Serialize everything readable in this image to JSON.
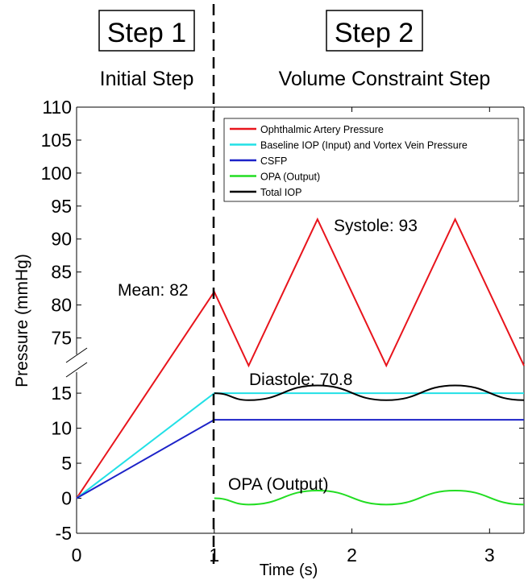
{
  "header": {
    "step1_label": "Step 1",
    "step1_sub": "Initial Step",
    "step2_label": "Step 2",
    "step2_sub": "Volume Constraint Step"
  },
  "chart_data": {
    "type": "line",
    "xlabel": "Time (s)",
    "ylabel": "Pressure (mmHg)",
    "xlim": [
      0,
      3.25
    ],
    "xticks": [
      0,
      1,
      2,
      3
    ],
    "yticks_upper": [
      75,
      80,
      85,
      90,
      95,
      100,
      105,
      110
    ],
    "yticks_lower": [
      -5,
      0,
      5,
      10,
      15
    ],
    "axis_break": true,
    "legend_position": "top-right",
    "series": [
      {
        "name": "Ophthalmic Artery Pressure",
        "color": "#e8141c",
        "x": [
          0,
          1,
          1.25,
          1.75,
          2.25,
          2.75,
          3.25
        ],
        "y": [
          0,
          82,
          70.8,
          93,
          70.8,
          93,
          70.8
        ]
      },
      {
        "name": "Baseline IOP (Input) and Vortex Vein Pressure",
        "color": "#22e0e6",
        "x": [
          0,
          1,
          3.25
        ],
        "y": [
          0,
          15,
          15
        ]
      },
      {
        "name": "CSFP",
        "color": "#1c22c8",
        "x": [
          0,
          1,
          3.25
        ],
        "y": [
          0,
          11.2,
          11.2
        ]
      },
      {
        "name": "OPA (Output)",
        "color": "#22dd22",
        "x": [
          1,
          1.25,
          1.75,
          2.25,
          2.75,
          3.25
        ],
        "y": [
          0,
          -0.9,
          1.1,
          -0.9,
          1.1,
          -0.9
        ],
        "smooth": true
      },
      {
        "name": "Total IOP",
        "color": "#000000",
        "x": [
          1,
          1.25,
          1.75,
          2.25,
          2.75,
          3.25
        ],
        "y": [
          15,
          14.0,
          16.1,
          14.0,
          16.1,
          14.0
        ],
        "smooth": true
      }
    ],
    "annotations": {
      "mean": "Mean: 82",
      "systole": "Systole: 93",
      "diastole": "Diastole: 70.8",
      "opa": "OPA (Output)"
    }
  }
}
